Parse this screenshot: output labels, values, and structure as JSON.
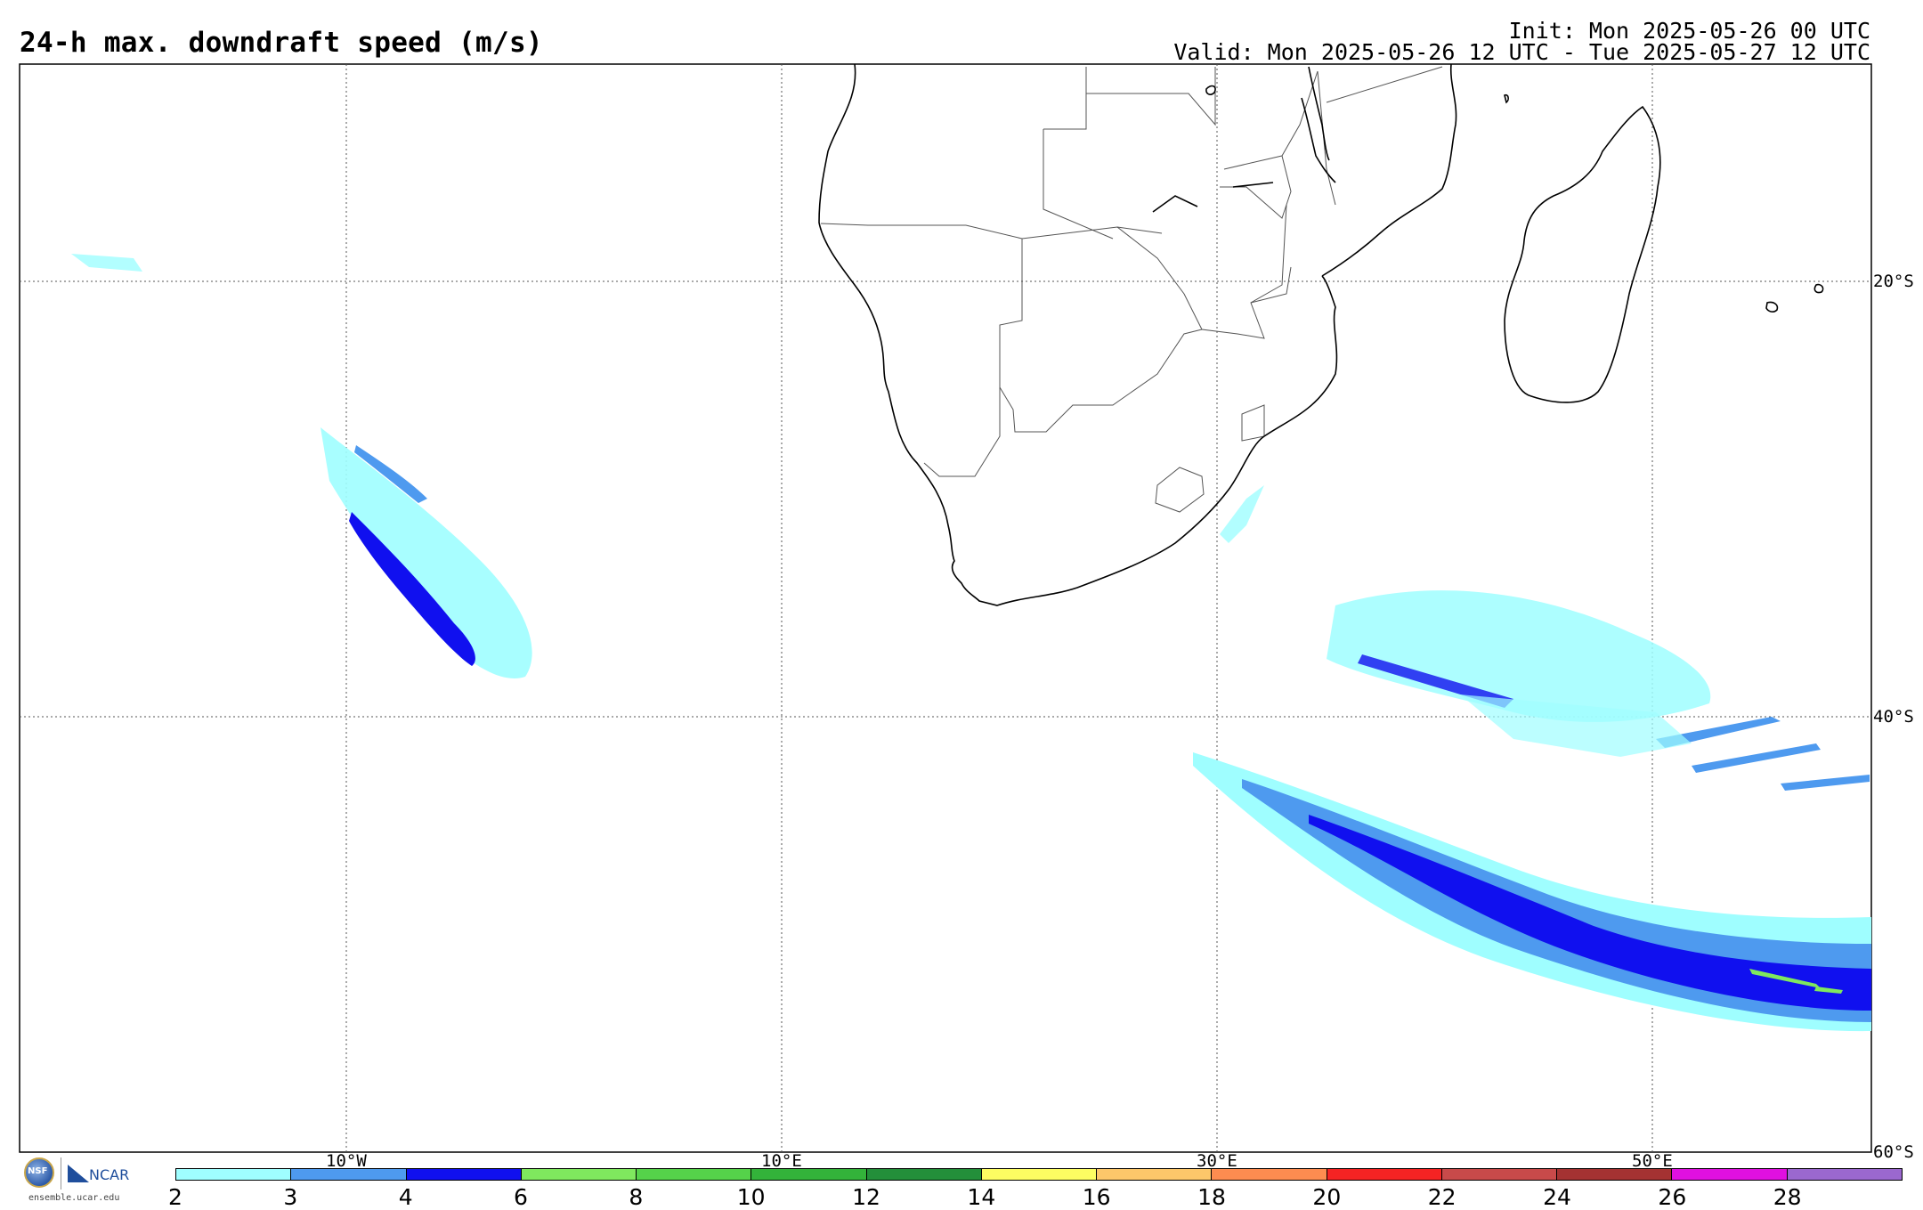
{
  "header": {
    "title": "24-h max. downdraft speed (m/s)",
    "init": "Init: Mon 2025-05-26 00 UTC",
    "valid": "Valid: Mon 2025-05-26 12 UTC - Tue 2025-05-27 12 UTC"
  },
  "map": {
    "lat_labels": [
      "20°S",
      "40°S",
      "60°S"
    ],
    "lon_labels": [
      "10°W",
      "10°E",
      "30°E",
      "50°E"
    ],
    "coastline_color": "#000000",
    "border_color": "#555555",
    "gridline_style": "dotted"
  },
  "colorbar": {
    "ticks": [
      "2",
      "3",
      "4",
      "6",
      "8",
      "10",
      "12",
      "14",
      "16",
      "18",
      "20",
      "22",
      "24",
      "26",
      "28"
    ],
    "colors": [
      "#9ffeff",
      "#4e9aef",
      "#1010ef",
      "#7fe85e",
      "#55d24a",
      "#33b33a",
      "#238f3a",
      "#fdfd62",
      "#fdc76a",
      "#fd8c50",
      "#f52323",
      "#c84a4a",
      "#a43232",
      "#e010e0",
      "#9b68cf"
    ]
  },
  "logos": {
    "nsf_text": "NSF",
    "ncar_text": "NCAR",
    "site": "ensemble.ucar.edu"
  },
  "palette": {
    "light": "#9ffeff",
    "mid": "#4e9aef",
    "dark": "#1010ef",
    "green": "#7fe85e"
  }
}
